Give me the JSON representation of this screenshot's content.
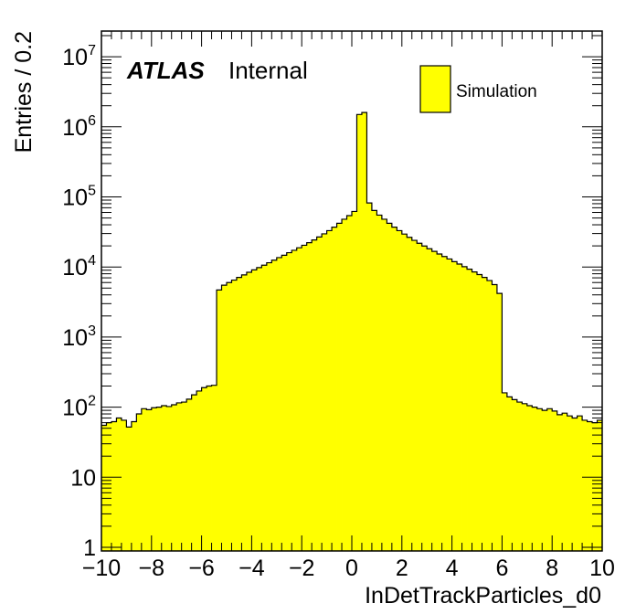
{
  "chart_data": {
    "type": "bar",
    "xlabel": "InDetTrackParticles_d0",
    "ylabel": "Entries / 0.2",
    "xlim": [
      -10,
      10
    ],
    "ylim": [
      1,
      25000000
    ],
    "log_y": true,
    "bin_width": 0.2,
    "fill_color": "#ffff00",
    "line_color": "#000000",
    "grid": false,
    "legend_position": "top-right",
    "x_ticks": [
      "−10",
      "−8",
      "−6",
      "−4",
      "−2",
      "0",
      "2",
      "4",
      "6",
      "8",
      "10"
    ],
    "y_ticks": [
      {
        "base": "1",
        "exp": ""
      },
      {
        "base": "10",
        "exp": ""
      },
      {
        "base": "10",
        "exp": "2"
      },
      {
        "base": "10",
        "exp": "3"
      },
      {
        "base": "10",
        "exp": "4"
      },
      {
        "base": "10",
        "exp": "5"
      },
      {
        "base": "10",
        "exp": "6"
      },
      {
        "base": "10",
        "exp": "7"
      }
    ],
    "series": [
      {
        "name": "Simulation",
        "values": [
          55,
          60,
          62,
          70,
          65,
          52,
          62,
          80,
          95,
          92,
          98,
          100,
          105,
          102,
          108,
          115,
          118,
          130,
          150,
          170,
          190,
          200,
          205,
          4700,
          5500,
          6000,
          6500,
          7100,
          7700,
          8400,
          9100,
          9800,
          10600,
          11500,
          12500,
          13600,
          14700,
          16000,
          17300,
          18800,
          20400,
          22200,
          24300,
          26800,
          29700,
          33000,
          37000,
          42000,
          48000,
          54000,
          62000,
          1500000,
          1600000,
          82000,
          64000,
          55000,
          48000,
          42000,
          37000,
          33000,
          29500,
          26500,
          24000,
          21800,
          19900,
          18200,
          16700,
          15300,
          14100,
          13000,
          11900,
          11000,
          10100,
          9300,
          8500,
          7800,
          7100,
          6400,
          5600,
          4200,
          160,
          140,
          128,
          118,
          112,
          105,
          100,
          95,
          90,
          95,
          88,
          78,
          82,
          75,
          70,
          75,
          65,
          62,
          60,
          65
        ]
      }
    ],
    "annotations": {
      "brand": "ATLAS",
      "label": "Internal"
    }
  }
}
